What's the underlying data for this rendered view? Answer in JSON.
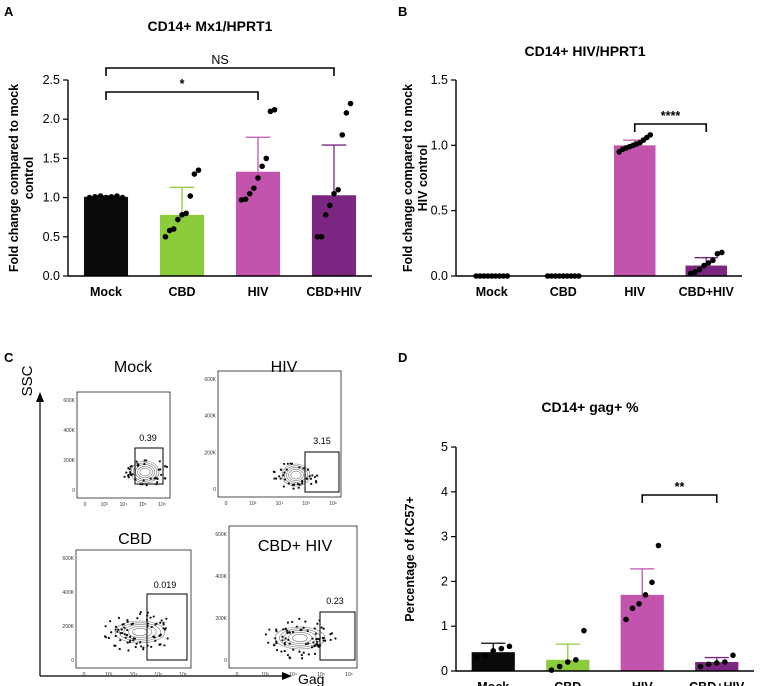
{
  "panel_labels": {
    "a": "A",
    "b": "B",
    "c": "C",
    "d": "D"
  },
  "colors": {
    "mock": "#0a0a0a",
    "cbd": "#8ccc3a",
    "hiv": "#c254ad",
    "cbdhiv": "#7b2680",
    "axis": "#000000"
  },
  "flow": {
    "ssc_label": "SSC",
    "gag_label": "Gag",
    "panels": [
      {
        "title": "Mock",
        "gate_value": "0.39"
      },
      {
        "title": "HIV",
        "gate_value": "3.15"
      },
      {
        "title": "CBD",
        "gate_value": "0.019"
      },
      {
        "title": "CBD+ HIV",
        "gate_value": "0.23"
      }
    ],
    "y_ticks": [
      "600K",
      "400K",
      "200K",
      "0"
    ],
    "x_ticks": [
      "0",
      "10³",
      "10⁴",
      "10⁵",
      "10⁶"
    ]
  },
  "chart_data": [
    {
      "id": "A",
      "type": "bar",
      "title": "CD14+ Mx1/HPRT1",
      "ylabel": "Fold change compared to mock control",
      "ylabel_lines": [
        "Fold change compared to mock",
        "control"
      ],
      "categories": [
        "Mock",
        "CBD",
        "HIV",
        "CBD+HIV"
      ],
      "values": [
        1.01,
        0.78,
        1.33,
        1.03
      ],
      "errors": [
        0.01,
        0.35,
        0.44,
        0.64
      ],
      "points": [
        [
          1.0,
          1.01,
          1.02,
          1.0,
          1.01,
          1.02,
          1.0
        ],
        [
          0.5,
          0.58,
          0.6,
          0.72,
          0.78,
          0.8,
          1.02,
          1.3,
          1.35
        ],
        [
          0.97,
          0.98,
          1.05,
          1.12,
          1.25,
          1.4,
          1.5,
          2.1,
          2.12
        ],
        [
          0.5,
          0.5,
          0.78,
          0.9,
          1.05,
          1.1,
          1.8,
          2.08,
          2.2
        ]
      ],
      "ylim": [
        0,
        2.5
      ],
      "yticks": [
        "0.0",
        "0.5",
        "1.0",
        "1.5",
        "2.0",
        "2.5"
      ],
      "significance": [
        {
          "from": 0,
          "to": 2,
          "label": "*"
        },
        {
          "from": 0,
          "to": 3,
          "label": "NS"
        }
      ]
    },
    {
      "id": "B",
      "type": "bar",
      "title": "CD14+   HIV/HPRT1",
      "ylabel": "Fold change compared to mock HIV control",
      "ylabel_lines": [
        "Fold change compared to mock",
        "HIV control"
      ],
      "categories": [
        "Mock",
        "CBD",
        "HIV",
        "CBD+HIV"
      ],
      "values": [
        0.0,
        0.0,
        1.0,
        0.08
      ],
      "errors": [
        0.0,
        0.0,
        0.04,
        0.06
      ],
      "points": [
        [
          0,
          0,
          0,
          0,
          0,
          0,
          0,
          0,
          0
        ],
        [
          0,
          0,
          0,
          0,
          0,
          0,
          0,
          0,
          0
        ],
        [
          0.95,
          0.97,
          0.98,
          0.99,
          1.0,
          1.01,
          1.02,
          1.04,
          1.06,
          1.08
        ],
        [
          0.02,
          0.03,
          0.05,
          0.08,
          0.1,
          0.12,
          0.17,
          0.18
        ]
      ],
      "ylim": [
        0,
        1.5
      ],
      "yticks": [
        "0.0",
        "0.5",
        "1.0",
        "1.5"
      ],
      "significance": [
        {
          "from": 2,
          "to": 3,
          "label": "****"
        }
      ]
    },
    {
      "id": "D",
      "type": "bar",
      "title": "CD14+   gag+ %",
      "ylabel": "Percentage of KC57+",
      "ylabel_lines": [
        "Percentage of KC57+"
      ],
      "categories": [
        "Mock",
        "CBD",
        "HIV",
        "CBD+HIV"
      ],
      "values": [
        0.42,
        0.25,
        1.7,
        0.2
      ],
      "errors": [
        0.2,
        0.35,
        0.58,
        0.1
      ],
      "points": [
        [
          0.3,
          0.35,
          0.45,
          0.5,
          0.55
        ],
        [
          0.02,
          0.1,
          0.2,
          0.25,
          0.9
        ],
        [
          1.15,
          1.4,
          1.5,
          1.7,
          1.98,
          2.8
        ],
        [
          0.1,
          0.15,
          0.18,
          0.2,
          0.35
        ]
      ],
      "ylim": [
        0,
        5
      ],
      "yticks": [
        "0",
        "1",
        "2",
        "3",
        "4",
        "5"
      ],
      "significance": [
        {
          "from": 2,
          "to": 3,
          "label": "**"
        }
      ]
    }
  ]
}
